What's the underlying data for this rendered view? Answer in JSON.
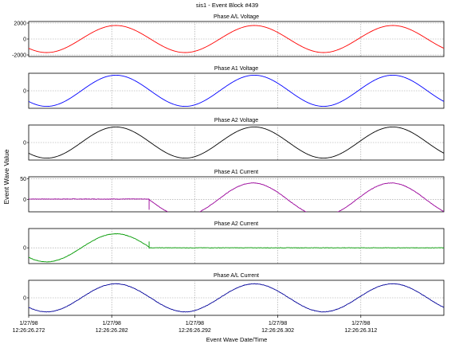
{
  "chart_data": {
    "type": "line",
    "title": "sis1 - Event Block #439",
    "xlabel": "Event Wave Date/Time",
    "ylabel": "Event Wave Value",
    "x_range": [
      0,
      50
    ],
    "x_tick_values": [
      0,
      10,
      20,
      30,
      40
    ],
    "x_tick_labels": [
      {
        "date": "1/27/98",
        "time": "12:26:26.272"
      },
      {
        "date": "1/27/98",
        "time": "12:26:26.282"
      },
      {
        "date": "1/27/98",
        "time": "12:26:26.292"
      },
      {
        "date": "1/27/98",
        "time": "12:26:26.302"
      },
      {
        "date": "1/27/98",
        "time": "12:26:26.312"
      }
    ],
    "grid": true,
    "panels": [
      {
        "title": "Phase A/L Voltage",
        "color": "#ff0000",
        "ylim": [
          -2200,
          2200
        ],
        "yticks": [
          {
            "value": 2000,
            "label": "2000"
          },
          {
            "value": 0,
            "label": "0"
          },
          {
            "value": -2000,
            "label": "-2000"
          }
        ],
        "segments": [
          {
            "x_start": 0,
            "x_end": 50,
            "amplitude": 1700,
            "offset": 0,
            "period": 16.67,
            "peak_x": 10.5
          }
        ]
      },
      {
        "title": "Phase A1 Voltage",
        "color": "#0000ff",
        "ylim": [
          -1800,
          1800
        ],
        "yticks": [
          {
            "value": 0,
            "label": "0"
          }
        ],
        "segments": [
          {
            "x_start": 0,
            "x_end": 50,
            "amplitude": 1600,
            "offset": 0,
            "period": 16.67,
            "peak_x": 10.5
          }
        ]
      },
      {
        "title": "Phase A2 Voltage",
        "color": "#000000",
        "ylim": [
          -1800,
          1800
        ],
        "yticks": [
          {
            "value": 0,
            "label": "0"
          }
        ],
        "segments": [
          {
            "x_start": 0,
            "x_end": 50,
            "amplitude": 1600,
            "offset": 0,
            "period": 16.67,
            "peak_x": 10.5
          }
        ]
      },
      {
        "title": "Phase A1 Current",
        "color": "#990099",
        "ylim": [
          -30,
          55
        ],
        "yticks": [
          {
            "value": 50,
            "label": "50"
          },
          {
            "value": 0,
            "label": "0"
          }
        ],
        "segments": [
          {
            "x_start": 0,
            "x_end": 14.5,
            "amplitude": 0,
            "offset": 1,
            "period": 16.67,
            "peak_x": 10.5
          },
          {
            "x_start": 14.5,
            "x_end": 50,
            "amplitude": 40,
            "offset": 0,
            "period": 16.67,
            "peak_x": 27
          }
        ],
        "spike": {
          "x": 14.5,
          "y": -25
        }
      },
      {
        "title": "Phase A2 Current",
        "color": "#009900",
        "ylim": [
          -45,
          55
        ],
        "yticks": [
          {
            "value": 0,
            "label": "0"
          }
        ],
        "segments": [
          {
            "x_start": 0,
            "x_end": 14.5,
            "amplitude": 40,
            "offset": 0,
            "period": 16.67,
            "peak_x": 10.5
          },
          {
            "x_start": 14.5,
            "x_end": 50,
            "amplitude": 0,
            "offset": 0,
            "period": 16.67,
            "peak_x": 10.5
          }
        ],
        "spike": {
          "x": 14.5,
          "y": 18
        }
      },
      {
        "title": "Phase A/L Current",
        "color": "#000099",
        "ylim": [
          -50,
          50
        ],
        "yticks": [
          {
            "value": 0,
            "label": "0"
          }
        ],
        "segments": [
          {
            "x_start": 0,
            "x_end": 50,
            "amplitude": 40,
            "offset": 0,
            "period": 16.67,
            "peak_x": 10.5
          }
        ]
      }
    ]
  }
}
